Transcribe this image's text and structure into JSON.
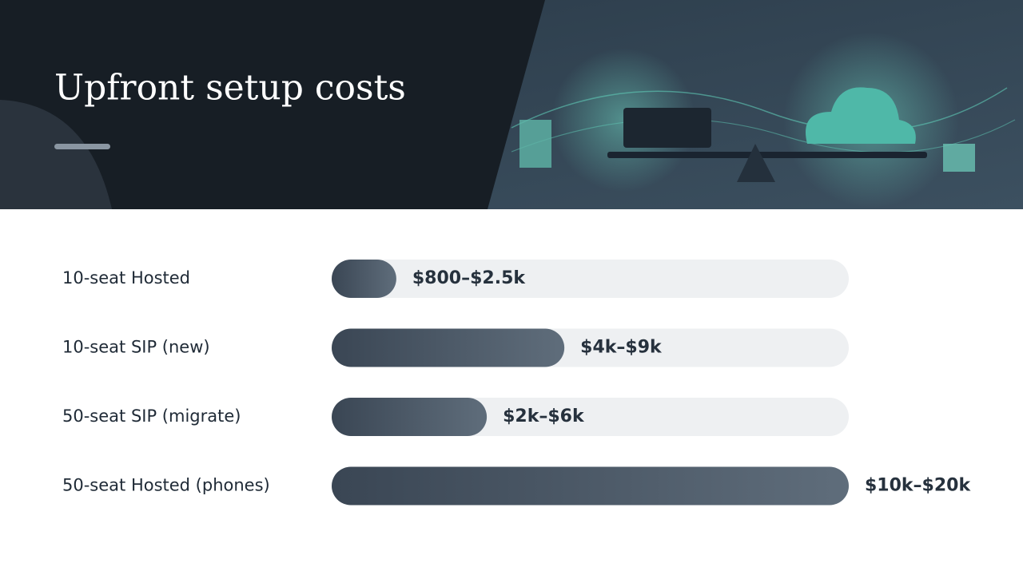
{
  "chart_data": {
    "type": "bar",
    "orientation": "horizontal",
    "title": "Upfront setup costs",
    "categories": [
      "10-seat Hosted",
      "10-seat SIP (new)",
      "50-seat SIP (migrate)",
      "50-seat Hosted (phones)"
    ],
    "values": [
      2500,
      9000,
      6000,
      20000
    ],
    "value_labels": [
      "$800–$2.5k",
      "$4k–$9k",
      "$2k–$6k",
      "$10k–$20k"
    ],
    "xlim": [
      0,
      20000
    ],
    "color": [
      "#3a4654",
      "#5f6d7b"
    ]
  }
}
